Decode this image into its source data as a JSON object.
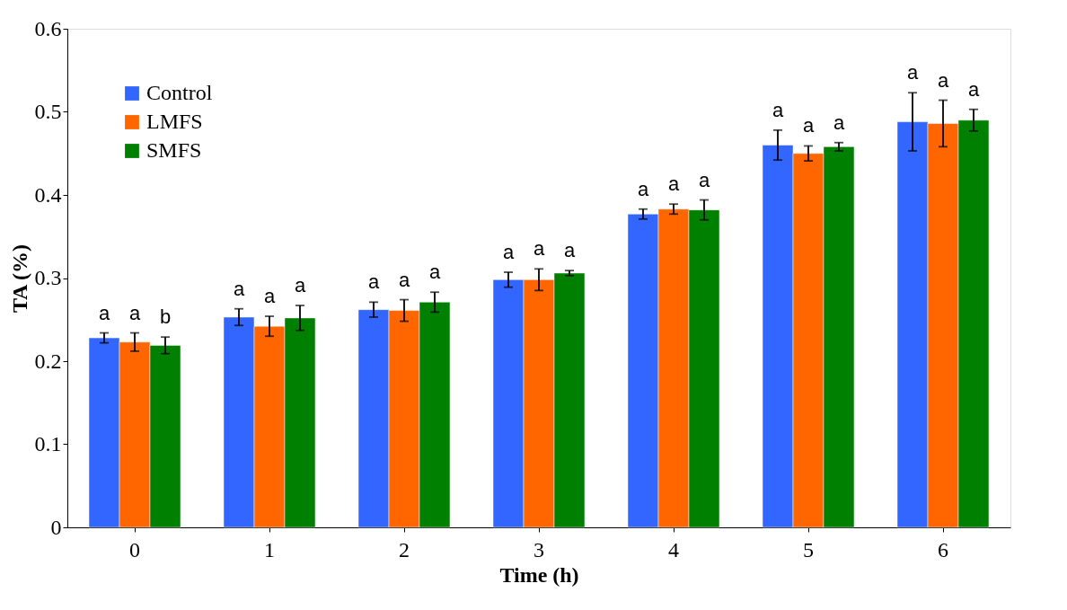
{
  "chart_data": {
    "type": "bar",
    "xlabel": "Time (h)",
    "ylabel": "TA (%)",
    "categories": [
      "0",
      "1",
      "2",
      "3",
      "4",
      "5",
      "6"
    ],
    "series": [
      {
        "name": "Control",
        "color": "#3366ff",
        "values": [
          0.228,
          0.253,
          0.262,
          0.298,
          0.377,
          0.46,
          0.488
        ],
        "errors": [
          0.006,
          0.01,
          0.009,
          0.009,
          0.006,
          0.018,
          0.035
        ]
      },
      {
        "name": "LMFS",
        "color": "#ff6600",
        "values": [
          0.223,
          0.242,
          0.261,
          0.298,
          0.383,
          0.45,
          0.486
        ],
        "errors": [
          0.011,
          0.012,
          0.013,
          0.013,
          0.006,
          0.009,
          0.028
        ]
      },
      {
        "name": "SMFS",
        "color": "#008000",
        "values": [
          0.219,
          0.252,
          0.271,
          0.306,
          0.382,
          0.458,
          0.49
        ],
        "errors": [
          0.01,
          0.015,
          0.012,
          0.003,
          0.012,
          0.005,
          0.013
        ]
      }
    ],
    "ylim": [
      0,
      0.6
    ],
    "yticks": [
      0,
      0.1,
      0.2,
      0.3,
      0.4,
      0.5,
      0.6
    ],
    "grid": false,
    "legend": "top left",
    "annotations": [
      "a",
      "a",
      "b",
      "a",
      "a",
      "a",
      "a",
      "a",
      "a",
      "a",
      "a",
      "a",
      "a",
      "a",
      "a",
      "a",
      "a",
      "a",
      "a",
      "a",
      "a"
    ]
  }
}
